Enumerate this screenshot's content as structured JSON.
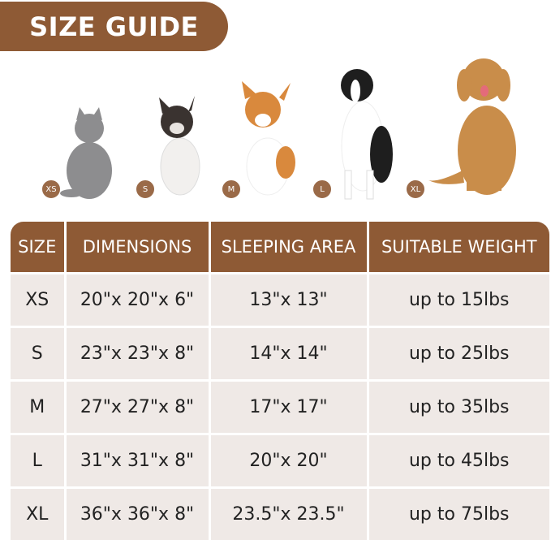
{
  "title": "SIZE GUIDE",
  "colors": {
    "brand": "#8e5a35",
    "row_bg": "#efe9e6"
  },
  "pets": [
    {
      "label": "XS",
      "animal": "cat"
    },
    {
      "label": "S",
      "animal": "french-bulldog"
    },
    {
      "label": "M",
      "animal": "corgi"
    },
    {
      "label": "L",
      "animal": "border-collie"
    },
    {
      "label": "XL",
      "animal": "golden-retriever"
    }
  ],
  "table": {
    "headers": [
      "SIZE",
      "DIMENSIONS",
      "SLEEPING AREA",
      "SUITABLE WEIGHT"
    ],
    "rows": [
      [
        "XS",
        "20\"x 20\"x 6\"",
        "13\"x 13\"",
        "up to 15lbs"
      ],
      [
        "S",
        "23\"x 23\"x 8\"",
        "14\"x 14\"",
        "up to 25lbs"
      ],
      [
        "M",
        "27\"x 27\"x 8\"",
        "17\"x 17\"",
        "up to 35lbs"
      ],
      [
        "L",
        "31\"x 31\"x 8\"",
        "20\"x 20\"",
        "up to 45lbs"
      ],
      [
        "XL",
        "36\"x 36\"x 8\"",
        "23.5\"x 23.5\"",
        "up to 75lbs"
      ]
    ]
  }
}
